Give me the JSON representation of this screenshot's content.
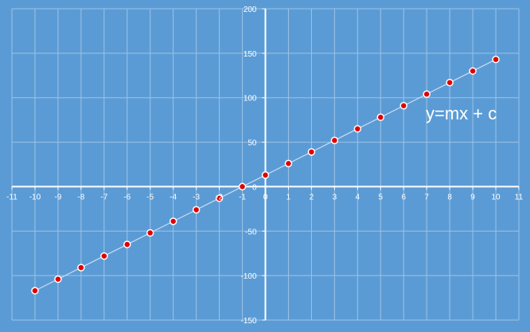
{
  "chart_data": {
    "type": "scatter",
    "title": "",
    "xlabel": "",
    "ylabel": "",
    "xlim": [
      -11,
      11
    ],
    "ylim": [
      -150,
      200
    ],
    "x_ticks": [
      -11,
      -10,
      -9,
      -8,
      -7,
      -6,
      -5,
      -4,
      -3,
      -2,
      -1,
      0,
      1,
      2,
      3,
      4,
      5,
      6,
      7,
      8,
      9,
      10,
      11
    ],
    "y_ticks": [
      -150,
      -100,
      -50,
      0,
      50,
      100,
      150,
      200
    ],
    "grid": true,
    "axes_through_origin": true,
    "annotation": {
      "text": "y=mx + c",
      "x": 7.2,
      "y": 72
    },
    "series": [
      {
        "marker": "circle",
        "line": true,
        "x": [
          -10,
          -9,
          -8,
          -7,
          -6,
          -5,
          -4,
          -3,
          -2,
          -1,
          0,
          1,
          2,
          3,
          4,
          5,
          6,
          7,
          8,
          9,
          10
        ],
        "y": [
          -117,
          -104,
          -91,
          -78,
          -65,
          -52,
          -39,
          -26,
          -13,
          0,
          13,
          26,
          39,
          52,
          65,
          78,
          91,
          104,
          117,
          130,
          143
        ]
      }
    ]
  },
  "colors": {
    "background": "#5b9bd5",
    "grid": "#9dc3e6",
    "axis": "#ffffff",
    "line": "#c9ddf0",
    "marker_fill": "#e00000",
    "marker_stroke": "#ffffff",
    "text": "#ffffff"
  }
}
